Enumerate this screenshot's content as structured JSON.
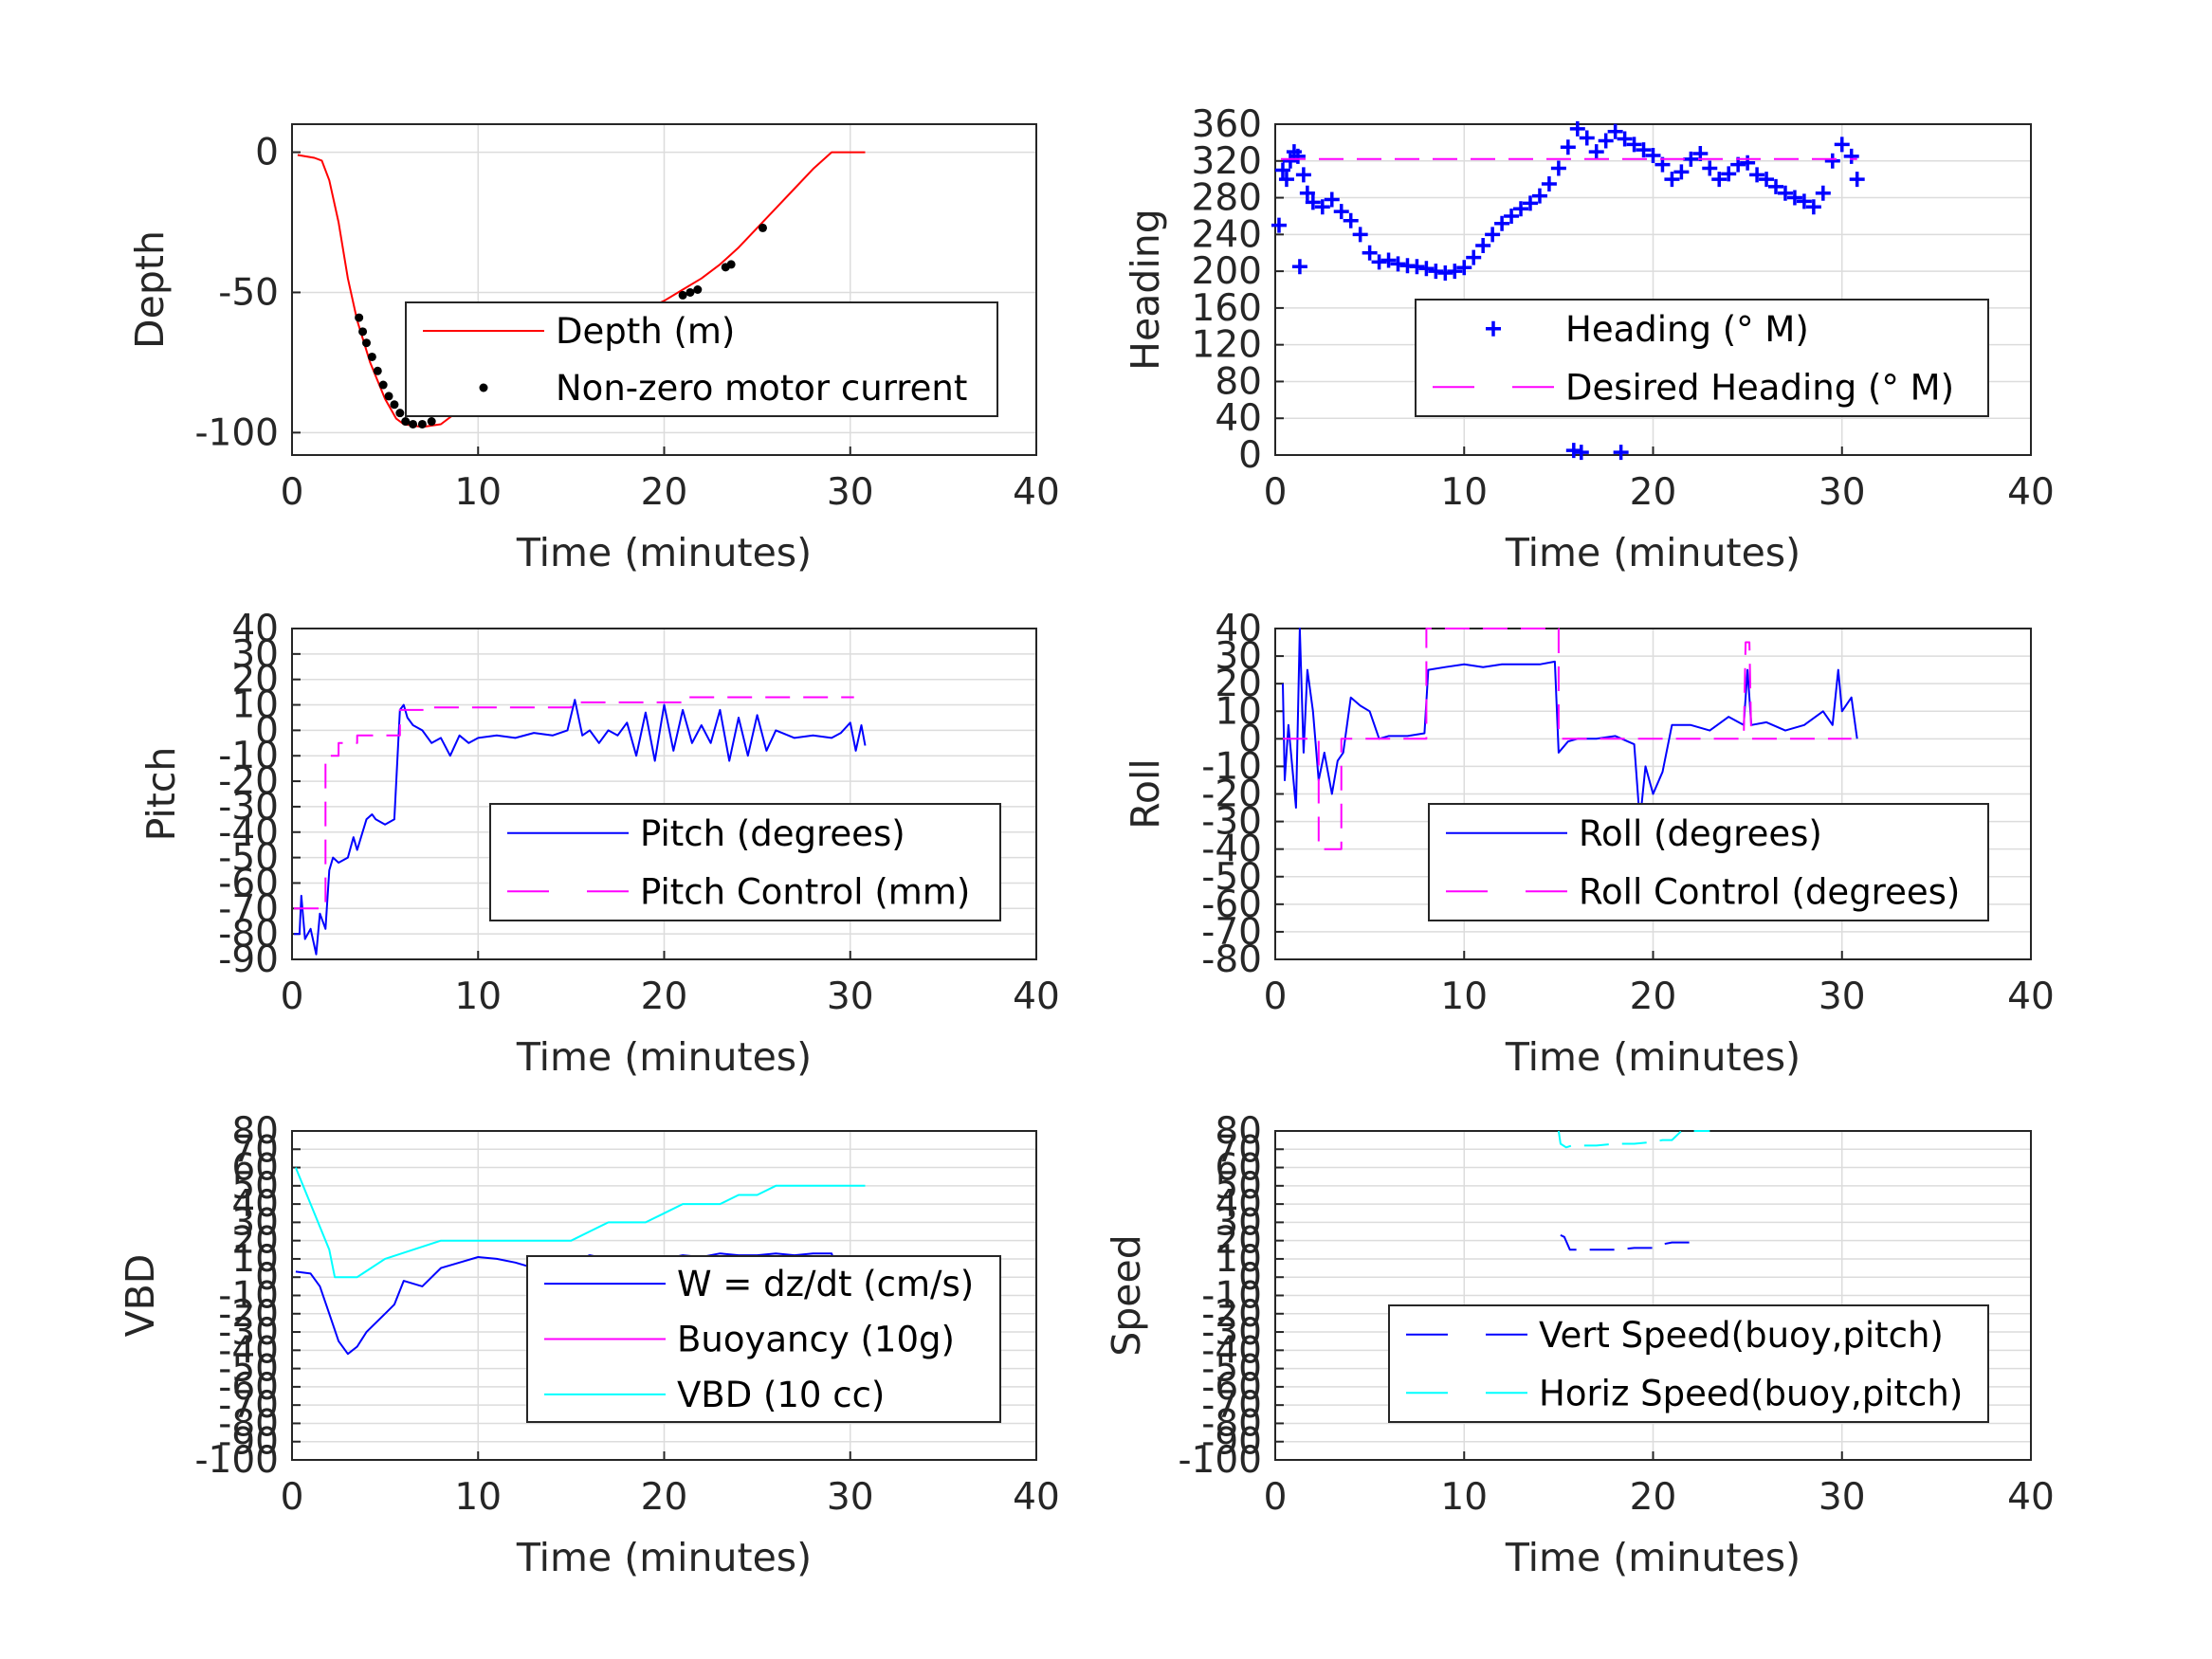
{
  "colors": {
    "red": "#ff0000",
    "blue": "#0000ff",
    "magenta": "#ff00ff",
    "cyan": "#00ffff",
    "black": "#000000"
  },
  "chart_data": [
    {
      "type": "line",
      "xlabel": "Time (minutes)",
      "ylabel": "Depth",
      "xlim": [
        0,
        40
      ],
      "ylim": [
        -108,
        10
      ],
      "xticks": [
        0,
        10,
        20,
        30,
        40
      ],
      "yticks": [
        0,
        -50,
        -100
      ],
      "grid": true,
      "legend_position": "center",
      "series": [
        {
          "name": "Depth (m)",
          "style": "line",
          "color": "#ff0000",
          "x": [
            0.3,
            1.2,
            1.6,
            2.0,
            2.5,
            3.0,
            3.5,
            4.2,
            5.0,
            5.6,
            6.0,
            7.0,
            8.0,
            9.0,
            10.0,
            11.0,
            12.0,
            13.0,
            14.0,
            15.0,
            16.0,
            17.0,
            18.0,
            19.0,
            20.0,
            21.0,
            22.0,
            23.0,
            24.0,
            25.0,
            26.0,
            27.0,
            28.0,
            29.0,
            30.0,
            30.8
          ],
          "y": [
            -1,
            -2,
            -3,
            -10,
            -25,
            -45,
            -60,
            -75,
            -88,
            -95,
            -97,
            -98,
            -97,
            -92,
            -87,
            -83,
            -81,
            -80,
            -78,
            -74,
            -69,
            -64,
            -60,
            -56,
            -53,
            -49,
            -45,
            -40,
            -34,
            -27,
            -20,
            -13,
            -6,
            0,
            0,
            0
          ]
        },
        {
          "name": "Non-zero motor current",
          "style": "dots",
          "color": "#000000",
          "x": [
            3.6,
            3.8,
            4.0,
            4.3,
            4.6,
            4.9,
            5.2,
            5.5,
            5.8,
            6.1,
            6.5,
            7.0,
            7.5,
            10.2,
            15.0,
            15.3,
            15.6,
            16.0,
            16.4,
            16.8,
            17.1,
            17.5,
            18.0,
            18.5,
            19.0,
            19.3,
            21.0,
            21.4,
            21.8,
            23.3,
            23.6,
            25.3
          ],
          "y": [
            -59,
            -64,
            -68,
            -73,
            -78,
            -83,
            -87,
            -90,
            -93,
            -96,
            -97,
            -97,
            -96,
            -83,
            -77,
            -75,
            -73,
            -71,
            -68,
            -66,
            -64,
            -62,
            -60,
            -58,
            -56,
            -55,
            -51,
            -50,
            -49,
            -41,
            -40,
            -27
          ]
        }
      ]
    },
    {
      "type": "scatter",
      "xlabel": "Time (minutes)",
      "ylabel": "Heading",
      "xlim": [
        0,
        40
      ],
      "ylim": [
        0,
        360
      ],
      "xticks": [
        0,
        10,
        20,
        30,
        40
      ],
      "yticks": [
        0,
        40,
        80,
        120,
        160,
        200,
        240,
        280,
        320,
        360
      ],
      "grid": true,
      "legend_position": "center",
      "series": [
        {
          "name": "Heading (° M)",
          "style": "plus",
          "color": "#0000ff",
          "x": [
            0.4,
            0.6,
            0.8,
            1.0,
            1.2,
            1.5,
            1.7,
            2.0,
            2.5,
            3.0,
            3.5,
            4.0,
            4.5,
            5.0,
            5.5,
            6.0,
            6.5,
            7.0,
            7.5,
            8.0,
            8.5,
            9.0,
            9.5,
            10.0,
            10.5,
            11.0,
            11.5,
            12.0,
            12.5,
            13.0,
            13.5,
            14.0,
            14.5,
            15.0,
            15.5,
            16.0,
            16.5,
            17.0,
            17.5,
            18.0,
            18.5,
            19.0,
            19.5,
            20.0,
            20.5,
            21.0,
            21.5,
            22.0,
            22.5,
            23.0,
            23.5,
            24.0,
            24.5,
            25.0,
            25.5,
            26.0,
            26.5,
            27.0,
            27.5,
            28.0,
            28.5,
            29.0,
            29.5,
            30.0,
            30.5,
            30.8,
            0.2,
            1.3,
            15.8,
            16.2,
            18.3
          ],
          "y": [
            310,
            300,
            320,
            330,
            325,
            305,
            285,
            275,
            270,
            278,
            265,
            255,
            240,
            220,
            210,
            212,
            208,
            206,
            205,
            203,
            200,
            198,
            200,
            204,
            215,
            228,
            240,
            252,
            260,
            268,
            274,
            282,
            295,
            312,
            335,
            355,
            345,
            330,
            342,
            352,
            344,
            338,
            332,
            326,
            316,
            300,
            308,
            322,
            328,
            312,
            300,
            306,
            316,
            318,
            305,
            300,
            292,
            285,
            280,
            276,
            270,
            285,
            320,
            338,
            325,
            300,
            250,
            205,
            5,
            3,
            3
          ]
        },
        {
          "name": "Desired Heading (° M)",
          "style": "dashed",
          "color": "#ff00ff",
          "x": [
            0.3,
            30.8
          ],
          "y": [
            322,
            322
          ]
        }
      ]
    },
    {
      "type": "line",
      "xlabel": "Time (minutes)",
      "ylabel": "Pitch",
      "xlim": [
        0,
        40
      ],
      "ylim": [
        -90,
        40
      ],
      "xticks": [
        0,
        10,
        20,
        30,
        40
      ],
      "yticks": [
        40,
        30,
        20,
        10,
        0,
        -10,
        -20,
        -30,
        -40,
        -50,
        -60,
        -70,
        -80,
        -90
      ],
      "grid": true,
      "legend_position": "center",
      "series": [
        {
          "name": "Pitch (degrees)",
          "style": "line",
          "color": "#0000ff",
          "x": [
            0.1,
            0.4,
            0.5,
            0.7,
            1.0,
            1.3,
            1.5,
            1.8,
            2.0,
            2.2,
            2.5,
            3.0,
            3.3,
            3.5,
            4.0,
            4.3,
            4.5,
            5.0,
            5.5,
            5.8,
            6.0,
            6.2,
            6.5,
            7.0,
            7.5,
            8.0,
            8.5,
            9.0,
            9.5,
            10.0,
            11.0,
            12.0,
            13.0,
            14.0,
            14.8,
            15.2,
            15.6,
            16.0,
            16.5,
            17.0,
            17.5,
            18.0,
            18.5,
            19.0,
            19.5,
            20.0,
            20.5,
            21.0,
            21.5,
            22.0,
            22.5,
            23.0,
            23.5,
            24.0,
            24.5,
            25.0,
            25.5,
            26.0,
            27.0,
            28.0,
            29.0,
            29.5,
            30.0,
            30.3,
            30.6,
            30.8
          ],
          "y": [
            -80,
            -80,
            -65,
            -82,
            -78,
            -88,
            -72,
            -78,
            -55,
            -50,
            -52,
            -50,
            -42,
            -47,
            -35,
            -33,
            -35,
            -37,
            -35,
            8,
            10,
            5,
            2,
            0,
            -5,
            -3,
            -10,
            -2,
            -5,
            -3,
            -2,
            -3,
            -1,
            -2,
            0,
            12,
            -2,
            0,
            -5,
            0,
            -2,
            3,
            -10,
            7,
            -12,
            10,
            -8,
            8,
            -5,
            2,
            -5,
            8,
            -12,
            5,
            -10,
            6,
            -8,
            0,
            -3,
            -2,
            -3,
            -1,
            3,
            -8,
            2,
            -6
          ]
        },
        {
          "name": "Pitch Control (mm)",
          "style": "dashed",
          "color": "#ff00ff",
          "x": [
            0.1,
            1.8,
            1.8,
            2.5,
            2.5,
            3.5,
            3.5,
            5.8,
            5.8,
            7.5,
            7.5,
            15.0,
            15.0,
            21.0,
            21.0,
            30.2
          ],
          "y": [
            -70,
            -70,
            -10,
            -10,
            -5,
            -5,
            -2,
            -2,
            8,
            8,
            9,
            9,
            11,
            11,
            13,
            13
          ]
        }
      ]
    },
    {
      "type": "line",
      "xlabel": "Time (minutes)",
      "ylabel": "Roll",
      "xlim": [
        0,
        40
      ],
      "ylim": [
        -80,
        40
      ],
      "xticks": [
        0,
        10,
        20,
        30,
        40
      ],
      "yticks": [
        40,
        30,
        20,
        10,
        0,
        -10,
        -20,
        -30,
        -40,
        -50,
        -60,
        -70,
        -80
      ],
      "grid": true,
      "legend_position": "center",
      "series": [
        {
          "name": "Roll (degrees)",
          "style": "line",
          "color": "#0000ff",
          "x": [
            0.4,
            0.5,
            0.7,
            0.9,
            1.1,
            1.3,
            1.5,
            1.7,
            2.0,
            2.3,
            2.6,
            3.0,
            3.3,
            3.6,
            4.0,
            4.5,
            5.0,
            5.5,
            6.0,
            7.0,
            7.9,
            8.1,
            9.0,
            10.0,
            11.0,
            12.0,
            13.0,
            14.0,
            14.8,
            15.0,
            15.5,
            16.0,
            17.0,
            18.0,
            19.0,
            19.3,
            19.6,
            20.0,
            20.5,
            21.0,
            22.0,
            23.0,
            24.0,
            24.8,
            25.0,
            25.2,
            26.0,
            27.0,
            28.0,
            29.0,
            29.5,
            29.8,
            30.0,
            30.5,
            30.8
          ],
          "y": [
            20,
            -15,
            5,
            -10,
            -25,
            40,
            -5,
            25,
            10,
            -15,
            -5,
            -20,
            -8,
            -5,
            15,
            12,
            10,
            0,
            1,
            1,
            2,
            25,
            26,
            27,
            26,
            27,
            27,
            27,
            28,
            -5,
            -1,
            0,
            0,
            1,
            -2,
            -30,
            -10,
            -20,
            -12,
            5,
            5,
            3,
            8,
            5,
            25,
            5,
            6,
            3,
            5,
            10,
            5,
            25,
            10,
            15,
            0
          ]
        },
        {
          "name": "Roll Control (degrees)",
          "style": "dashed",
          "color": "#ff00ff",
          "x": [
            0.4,
            2.3,
            2.3,
            3.5,
            3.5,
            8.0,
            8.0,
            15.0,
            15.0,
            19.5,
            19.5,
            24.8,
            24.9,
            25.1,
            25.2,
            30.5
          ],
          "y": [
            0,
            0,
            -40,
            -40,
            0,
            0,
            40,
            40,
            0,
            0,
            0,
            0,
            35,
            35,
            0,
            0
          ]
        }
      ]
    },
    {
      "type": "line",
      "xlabel": "Time (minutes)",
      "ylabel": "VBD",
      "xlim": [
        0,
        40
      ],
      "ylim": [
        -100,
        80
      ],
      "xticks": [
        0,
        10,
        20,
        30,
        40
      ],
      "yticks": [
        80,
        70,
        60,
        50,
        40,
        30,
        20,
        10,
        0,
        -10,
        -20,
        -30,
        -40,
        -50,
        -60,
        -70,
        -80,
        -90,
        -100
      ],
      "grid": true,
      "legend_position": "center",
      "series": [
        {
          "name": "W = dz/dt (cm/s)",
          "style": "line",
          "color": "#0000ff",
          "x": [
            0.2,
            1.0,
            1.5,
            2.0,
            2.5,
            3.0,
            3.5,
            4.0,
            4.5,
            5.0,
            5.5,
            6.0,
            7.0,
            8.0,
            9.0,
            10.0,
            11.0,
            12.0,
            13.0,
            14.0,
            15.0,
            16.0,
            17.0,
            18.0,
            19.0,
            20.0,
            21.0,
            22.0,
            23.0,
            24.0,
            25.0,
            26.0,
            27.0,
            28.0,
            29.0,
            29.3,
            30.0,
            30.8
          ],
          "y": [
            3,
            2,
            -5,
            -20,
            -35,
            -42,
            -38,
            -30,
            -25,
            -20,
            -15,
            -2,
            -5,
            5,
            8,
            11,
            10,
            8,
            5,
            4,
            8,
            12,
            10,
            9,
            8,
            10,
            12,
            11,
            13,
            12,
            12,
            13,
            12,
            13,
            13,
            3,
            4,
            3
          ]
        },
        {
          "name": "Buoyancy (10g)",
          "style": "line",
          "color": "#ff00ff",
          "x": [],
          "y": []
        },
        {
          "name": "VBD (10 cc)",
          "style": "line",
          "color": "#00ffff",
          "x": [
            0.2,
            1.0,
            2.0,
            2.3,
            3.0,
            3.5,
            5.0,
            8.0,
            10.0,
            12.0,
            15.0,
            16.0,
            17.0,
            19.0,
            20.0,
            21.0,
            23.0,
            24.0,
            25.0,
            26.0,
            28.0,
            30.8
          ],
          "y": [
            60,
            40,
            15,
            0,
            0,
            0,
            10,
            20,
            20,
            20,
            20,
            25,
            30,
            30,
            35,
            40,
            40,
            45,
            45,
            50,
            50,
            50
          ]
        }
      ]
    },
    {
      "type": "line",
      "xlabel": "Time (minutes)",
      "ylabel": "Speed",
      "xlim": [
        0,
        40
      ],
      "ylim": [
        -100,
        80
      ],
      "xticks": [
        0,
        10,
        20,
        30,
        40
      ],
      "yticks": [
        80,
        70,
        60,
        50,
        40,
        30,
        20,
        10,
        0,
        -10,
        -20,
        -30,
        -40,
        -50,
        -60,
        -70,
        -80,
        -90,
        -100
      ],
      "grid": true,
      "legend_position": "center",
      "series": [
        {
          "name": "Vert Speed(buoy,pitch)",
          "style": "dashed",
          "color": "#0000ff",
          "x": [
            15.1,
            15.3,
            15.6,
            16.0,
            17.0,
            18.0,
            19.0,
            20.0,
            20.5,
            21.0,
            22.0
          ],
          "y": [
            23,
            22,
            15,
            15,
            15,
            15,
            16,
            16,
            18,
            19,
            19
          ]
        },
        {
          "name": "Horiz Speed(buoy,pitch)",
          "style": "dashed",
          "color": "#00ffff",
          "x": [
            15.0,
            15.1,
            15.4,
            15.7,
            16.0,
            17.0,
            18.0,
            19.0,
            20.0,
            20.5,
            21.0,
            21.5,
            22.5,
            23.0
          ],
          "y": [
            80,
            73,
            71,
            72,
            72,
            72,
            73,
            73,
            74,
            75,
            75,
            80,
            80,
            80
          ]
        }
      ]
    }
  ]
}
